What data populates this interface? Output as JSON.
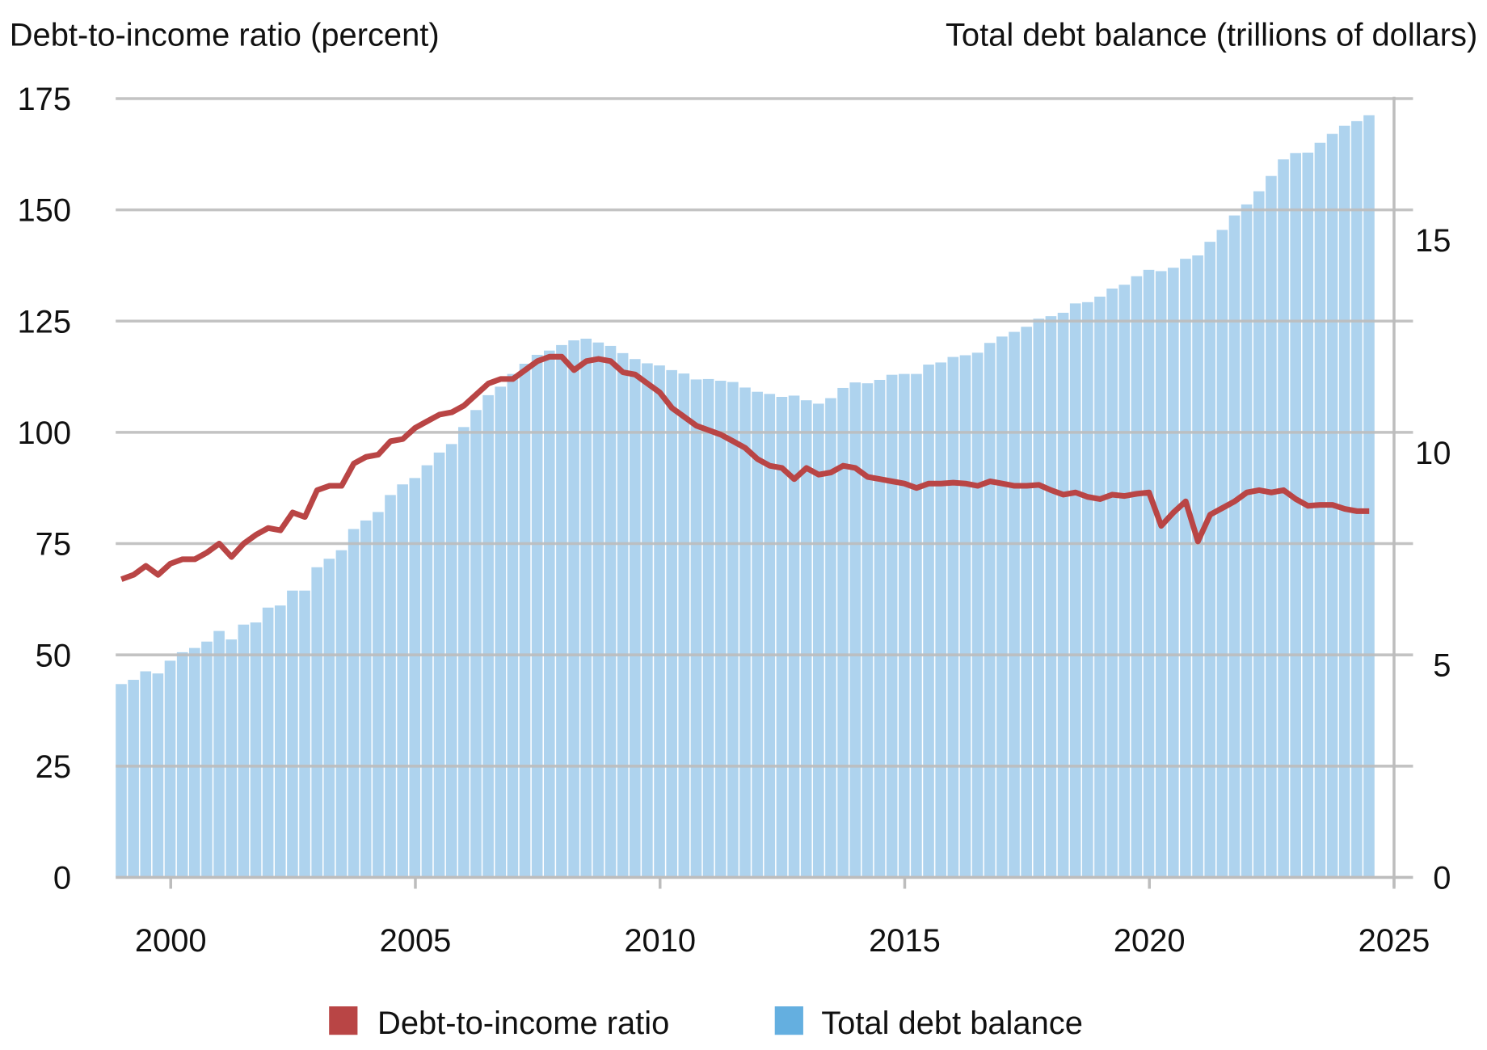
{
  "chart_data": {
    "type": "bar+line",
    "left_axis_title": "Debt-to-income ratio (percent)",
    "right_axis_title": "Total debt balance (trillions of dollars)",
    "left_ylim": [
      0,
      175
    ],
    "left_ticks": [
      "0",
      "25",
      "50",
      "75",
      "100",
      "125",
      "150",
      "175"
    ],
    "right_ylim": [
      0,
      18.33
    ],
    "right_ticks": [
      "0",
      "5",
      "10",
      "15"
    ],
    "x_ticks": [
      "2000",
      "2005",
      "2010",
      "2015",
      "2020",
      "2025"
    ],
    "x_range": [
      "1999 Q1",
      "2024 Q3"
    ],
    "grid": true,
    "legend_position": "bottom",
    "colors": {
      "line": "#b94545",
      "bars": "#aed3ee",
      "legend_bar": "#64afe0",
      "grid": "#bdbdbd"
    },
    "legend": [
      {
        "label": "Debt-to-income ratio",
        "series": "line"
      },
      {
        "label": "Total debt balance",
        "series": "bars"
      }
    ],
    "start_year": 1999,
    "series": [
      {
        "name": "Total debt balance",
        "kind": "bar",
        "axis": "right",
        "values": [
          4.55,
          4.65,
          4.85,
          4.8,
          5.1,
          5.3,
          5.4,
          5.55,
          5.8,
          5.6,
          5.95,
          6.0,
          6.35,
          6.4,
          6.75,
          6.75,
          7.3,
          7.5,
          7.7,
          8.2,
          8.4,
          8.6,
          9.0,
          9.25,
          9.4,
          9.7,
          10.0,
          10.2,
          10.6,
          11.0,
          11.35,
          11.55,
          11.85,
          12.09,
          12.3,
          12.4,
          12.53,
          12.64,
          12.68,
          12.59,
          12.51,
          12.34,
          12.2,
          12.1,
          12.05,
          11.94,
          11.86,
          11.72,
          11.73,
          11.69,
          11.66,
          11.53,
          11.43,
          11.38,
          11.31,
          11.34,
          11.23,
          11.15,
          11.28,
          11.52,
          11.65,
          11.63,
          11.71,
          11.83,
          11.85,
          11.85,
          12.07,
          12.12,
          12.25,
          12.29,
          12.35,
          12.58,
          12.73,
          12.84,
          12.96,
          13.15,
          13.21,
          13.29,
          13.51,
          13.54,
          13.67,
          13.86,
          13.95,
          14.15,
          14.3,
          14.27,
          14.35,
          14.56,
          14.64,
          14.96,
          15.24,
          15.58,
          15.84,
          16.15,
          16.51,
          16.9,
          17.05,
          17.06,
          17.29,
          17.5,
          17.69,
          17.8,
          17.94
        ]
      },
      {
        "name": "Debt-to-income ratio",
        "kind": "line",
        "axis": "left",
        "values": [
          67,
          68,
          70,
          68,
          70.5,
          71.5,
          71.5,
          73,
          75,
          72,
          75,
          77,
          78.5,
          78,
          82,
          81,
          87,
          88,
          88,
          93,
          94.5,
          95,
          98,
          98.5,
          101,
          102.5,
          104,
          104.5,
          106,
          108.5,
          111,
          112,
          112,
          114,
          116,
          117,
          117,
          114,
          116,
          116.5,
          116,
          113.5,
          113,
          111,
          109,
          105.5,
          103.5,
          101.5,
          100.5,
          99.5,
          98,
          96.5,
          94,
          92.5,
          92,
          89.5,
          92,
          90.5,
          91,
          92.5,
          92,
          90,
          89.5,
          89,
          88.5,
          87.5,
          88.5,
          88.5,
          88.7,
          88.5,
          88,
          89,
          88.5,
          88,
          88,
          88.2,
          87,
          86,
          86.5,
          85.5,
          85,
          86,
          85.7,
          86.2,
          86.5,
          79,
          82,
          84.5,
          75.5,
          81.5,
          83,
          84.5,
          86.5,
          87,
          86.5,
          87,
          85,
          83.5,
          83.7,
          83.7,
          82.8,
          82.3,
          82.3
        ]
      }
    ]
  }
}
